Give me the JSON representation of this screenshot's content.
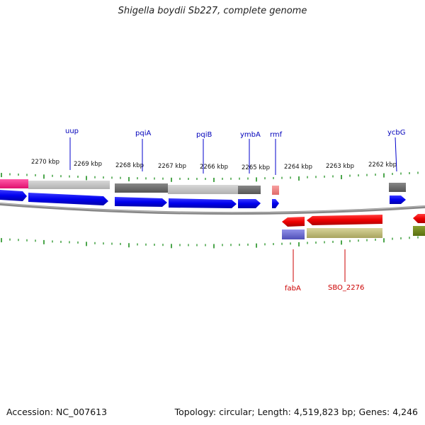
{
  "title": "Shigella boydii Sb227, complete genome",
  "accession": "Accession: NC_007613",
  "summary": "Topology: circular; Length: 4,519,823 bp; Genes: 4,246",
  "kbp_labels": [
    "2270 kbp",
    "2269 kbp",
    "2268 kbp",
    "2267 kbp",
    "2266 kbp",
    "2265 kbp",
    "2264 kbp",
    "2263 kbp",
    "2262 kbp"
  ],
  "top_genes": [
    "uup",
    "pqiA",
    "pqiB",
    "ymbA",
    "rmf",
    "ycbG"
  ],
  "bottom_genes": [
    "fabA",
    "SBO_2276"
  ],
  "colors": {
    "forward_gene": "#0000ee",
    "reverse_gene": "#ee0000",
    "top_label": "#0000bb",
    "bottom_label": "#cc0000",
    "tick": "#118811",
    "backbone": "#888888"
  }
}
